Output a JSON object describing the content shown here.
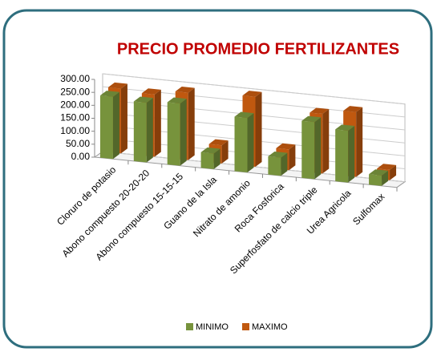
{
  "chart_data": {
    "type": "bar3d",
    "title": "PRECIO PROMEDIO FERTILIZANTES",
    "categories": [
      "Cloruro de potasio",
      "Abono compuesto 20-20-20",
      "Abono compuesto 15-15-15",
      "Guano de la Isla",
      "Nitrato de amonio",
      "Roca Fosforica",
      "Superfosfato de calcio triple",
      "Urea Agricola",
      "Sulfomax"
    ],
    "series": [
      {
        "name": "MINIMO",
        "color": "#77933c",
        "values": [
          240,
          230,
          240,
          60,
          210,
          70,
          220,
          200,
          40
        ]
      },
      {
        "name": "MAXIMO",
        "color": "#c0580f",
        "values": [
          250,
          240,
          260,
          70,
          270,
          80,
          230,
          250,
          40
        ]
      }
    ],
    "ylim": [
      0,
      300
    ],
    "yticks": [
      {
        "value": 0,
        "label": "0.00"
      },
      {
        "value": 50,
        "label": "50.00"
      },
      {
        "value": 100,
        "label": "100.00"
      },
      {
        "value": 150,
        "label": "150.00"
      },
      {
        "value": 200,
        "label": "200.00"
      },
      {
        "value": 250,
        "label": "250.00"
      },
      {
        "value": 300,
        "label": "300.00"
      }
    ],
    "grid": true,
    "legend": "bottom"
  }
}
